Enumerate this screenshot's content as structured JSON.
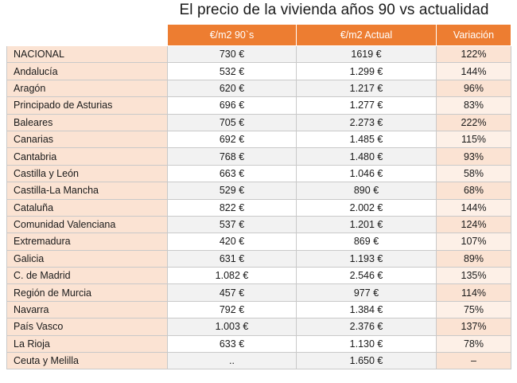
{
  "title": "El precio de la vivienda años 90 vs actualidad",
  "chart_data": {
    "type": "table",
    "title": "El precio de la vivienda años 90 vs actualidad",
    "columns": [
      "€/m2 90`s",
      "€/m2 Actual",
      "Variación"
    ],
    "rows": [
      {
        "region": "NACIONAL",
        "price_90s": "730 €",
        "price_now": "1619 €",
        "variation": "122%"
      },
      {
        "region": "Andalucía",
        "price_90s": "532 €",
        "price_now": "1.299 €",
        "variation": "144%"
      },
      {
        "region": "Aragón",
        "price_90s": "620 €",
        "price_now": "1.217 €",
        "variation": "96%"
      },
      {
        "region": "Principado de Asturias",
        "price_90s": "696 €",
        "price_now": "1.277 €",
        "variation": "83%"
      },
      {
        "region": "Baleares",
        "price_90s": "705 €",
        "price_now": "2.273 €",
        "variation": "222%"
      },
      {
        "region": "Canarias",
        "price_90s": "692 €",
        "price_now": "1.485 €",
        "variation": "115%"
      },
      {
        "region": "Cantabria",
        "price_90s": "768 €",
        "price_now": "1.480 €",
        "variation": "93%"
      },
      {
        "region": "Castilla y León",
        "price_90s": "663 €",
        "price_now": "1.046 €",
        "variation": "58%"
      },
      {
        "region": "Castilla-La Mancha",
        "price_90s": "529 €",
        "price_now": "890 €",
        "variation": "68%"
      },
      {
        "region": "Cataluña",
        "price_90s": "822 €",
        "price_now": "2.002 €",
        "variation": "144%"
      },
      {
        "region": "Comunidad Valenciana",
        "price_90s": "537 €",
        "price_now": "1.201 €",
        "variation": "124%"
      },
      {
        "region": "Extremadura",
        "price_90s": "420 €",
        "price_now": "869 €",
        "variation": "107%"
      },
      {
        "region": "Galicia",
        "price_90s": "631 €",
        "price_now": "1.193 €",
        "variation": "89%"
      },
      {
        "region": "C. de Madrid",
        "price_90s": "1.082 €",
        "price_now": "2.546 €",
        "variation": "135%"
      },
      {
        "region": "Región de Murcia",
        "price_90s": "457 €",
        "price_now": "977 €",
        "variation": "114%"
      },
      {
        "region": "Navarra",
        "price_90s": "792 €",
        "price_now": "1.384 €",
        "variation": "75%"
      },
      {
        "region": "País Vasco",
        "price_90s": "1.003 €",
        "price_now": "2.376 €",
        "variation": "137%"
      },
      {
        "region": "La Rioja",
        "price_90s": "633 €",
        "price_now": "1.130 €",
        "variation": "78%"
      },
      {
        "region": "Ceuta y Melilla",
        "price_90s": "..",
        "price_now": "1.650 €",
        "variation": "–"
      }
    ]
  },
  "colors": {
    "header_bg": "#ed7d31",
    "header_text": "#ffffff",
    "region_bg": "#fbe3d3"
  }
}
